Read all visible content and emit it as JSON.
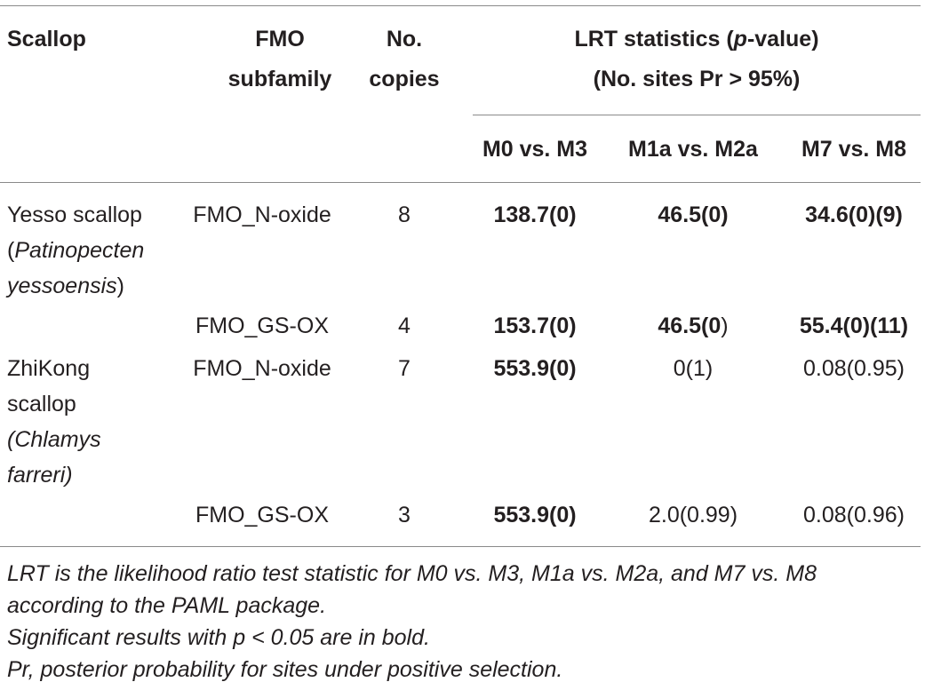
{
  "header": {
    "scallop": "Scallop",
    "fmo_line1": "FMO",
    "fmo_line2": "subfamily",
    "copies_line1": "No.",
    "copies_line2": "copies",
    "lrt_line1_pre": "LRT statistics (",
    "lrt_line1_p": "p",
    "lrt_line1_post": "-value)",
    "lrt_line2": "(No. sites Pr > 95%)",
    "col_m0m3": "M0 vs. M3",
    "col_m1am2a": "M1a vs. M2a",
    "col_m7m8": "M7 vs. M8"
  },
  "rows": [
    {
      "scallop_name": "Yesso scallop",
      "scallop_paren_open": "(",
      "scallop_latin_1": "Patinopecten",
      "scallop_latin_2": "yessoensis",
      "scallop_paren_close": ")",
      "subfamily": "FMO_N-oxide",
      "copies": "8",
      "m0m3": "138.7(0)",
      "m1am2a": "46.5(0)",
      "m7m8": "34.6(0)(9)"
    },
    {
      "subfamily": "FMO_GS-OX",
      "copies": "4",
      "m0m3": "153.7(0)",
      "m1am2a_bold": "46.5(0",
      "m1am2a_plain": ")",
      "m7m8": "55.4(0)(11)"
    },
    {
      "scallop_line1": "ZhiKong",
      "scallop_line2": "scallop",
      "scallop_latin_1": "(Chlamys",
      "scallop_latin_2": "farreri)",
      "subfamily": "FMO_N-oxide",
      "copies": "7",
      "m0m3": "553.9(0)",
      "m1am2a": "0(1)",
      "m7m8": "0.08(0.95)"
    },
    {
      "subfamily": "FMO_GS-OX",
      "copies": "3",
      "m0m3": "553.9(0)",
      "m1am2a": "2.0(0.99)",
      "m7m8": "0.08(0.96)"
    }
  ],
  "footnotes": [
    "LRT is the likelihood ratio test statistic for M0 vs. M3, M1a vs. M2a, and M7 vs. M8",
    "according to the PAML package.",
    "Significant results with p < 0.05 are in bold.",
    "Pr, posterior probability for sites under positive selection."
  ]
}
